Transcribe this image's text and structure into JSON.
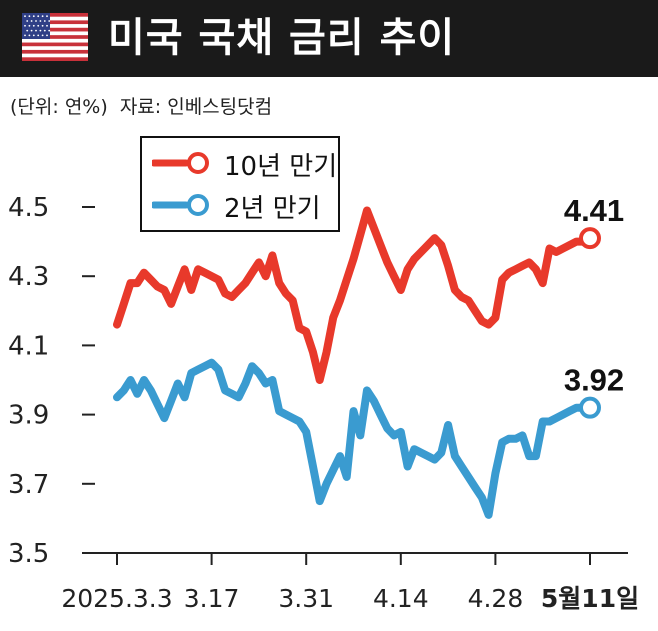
{
  "header": {
    "title": "미국 국채 금리 추이",
    "flag_icon": "us-flag-icon"
  },
  "meta": {
    "unit": "(단위: 연%)",
    "source": "자료: 인베스팅닷컴"
  },
  "colors": {
    "ten_year": "#e8392b",
    "two_year": "#3a9bd0",
    "header_bg": "#1a1a1a"
  },
  "chart_data": {
    "type": "line",
    "ylim": [
      3.5,
      4.6
    ],
    "yticks": [
      "4.5",
      "4.3",
      "4.1",
      "3.9",
      "3.7",
      "3.5"
    ],
    "ytick_values": [
      4.5,
      4.3,
      4.1,
      3.9,
      3.7,
      3.5
    ],
    "xticks": [
      "2025.3.3",
      "3.17",
      "3.31",
      "4.14",
      "4.28",
      "5월11일"
    ],
    "xtick_values": [
      0,
      14,
      28,
      42,
      56,
      70
    ],
    "series": [
      {
        "name": "10년 만기",
        "end_label": "4.41",
        "x": [
          0,
          1,
          2,
          3,
          4,
          5,
          6,
          7,
          8,
          9,
          10,
          11,
          12,
          13,
          14,
          15,
          16,
          17,
          18,
          19,
          20,
          21,
          22,
          23,
          24,
          25,
          26,
          27,
          28,
          29,
          30,
          31,
          32,
          33,
          34,
          35,
          36,
          37,
          38,
          39,
          40,
          41,
          42,
          43,
          44,
          45,
          46,
          47,
          48,
          49,
          50,
          51,
          52,
          53,
          54,
          55,
          56,
          57,
          58,
          59,
          60,
          61,
          62,
          63,
          64,
          65,
          66,
          67,
          68,
          69,
          70
        ],
        "values": [
          4.16,
          4.22,
          4.28,
          4.28,
          4.31,
          4.29,
          4.27,
          4.26,
          4.22,
          4.27,
          4.32,
          4.26,
          4.32,
          4.31,
          4.3,
          4.29,
          4.25,
          4.24,
          4.26,
          4.28,
          4.31,
          4.34,
          4.3,
          4.36,
          4.28,
          4.25,
          4.23,
          4.15,
          4.14,
          4.08,
          4.0,
          4.08,
          4.18,
          4.23,
          4.29,
          4.35,
          4.42,
          4.49,
          4.44,
          4.39,
          4.34,
          4.3,
          4.26,
          4.32,
          4.35,
          4.37,
          4.39,
          4.41,
          4.39,
          4.33,
          4.26,
          4.24,
          4.23,
          4.2,
          4.17,
          4.16,
          4.18,
          4.29,
          4.31,
          4.32,
          4.33,
          4.34,
          4.32,
          4.28,
          4.38,
          4.37,
          4.38,
          4.39,
          4.4,
          4.4,
          4.41
        ]
      },
      {
        "name": "2년 만기",
        "end_label": "3.92",
        "x": [
          0,
          1,
          2,
          3,
          4,
          5,
          6,
          7,
          8,
          9,
          10,
          11,
          12,
          13,
          14,
          15,
          16,
          17,
          18,
          19,
          20,
          21,
          22,
          23,
          24,
          25,
          26,
          27,
          28,
          29,
          30,
          31,
          32,
          33,
          34,
          35,
          36,
          37,
          38,
          39,
          40,
          41,
          42,
          43,
          44,
          45,
          46,
          47,
          48,
          49,
          50,
          51,
          52,
          53,
          54,
          55,
          56,
          57,
          58,
          59,
          60,
          61,
          62,
          63,
          64,
          65,
          66,
          67,
          68,
          69,
          70
        ],
        "values": [
          3.95,
          3.97,
          4.0,
          3.96,
          4.0,
          3.97,
          3.93,
          3.89,
          3.94,
          3.99,
          3.95,
          4.02,
          4.03,
          4.04,
          4.05,
          4.03,
          3.97,
          3.96,
          3.95,
          3.99,
          4.04,
          4.02,
          3.99,
          4.0,
          3.91,
          3.9,
          3.89,
          3.88,
          3.85,
          3.75,
          3.65,
          3.7,
          3.74,
          3.78,
          3.72,
          3.91,
          3.84,
          3.97,
          3.94,
          3.9,
          3.86,
          3.84,
          3.85,
          3.75,
          3.8,
          3.79,
          3.78,
          3.77,
          3.79,
          3.87,
          3.78,
          3.75,
          3.72,
          3.69,
          3.66,
          3.61,
          3.73,
          3.82,
          3.83,
          3.83,
          3.84,
          3.78,
          3.78,
          3.88,
          3.88,
          3.89,
          3.9,
          3.91,
          3.92,
          3.92,
          3.92
        ]
      }
    ],
    "legend": "top-left",
    "grid": false
  }
}
